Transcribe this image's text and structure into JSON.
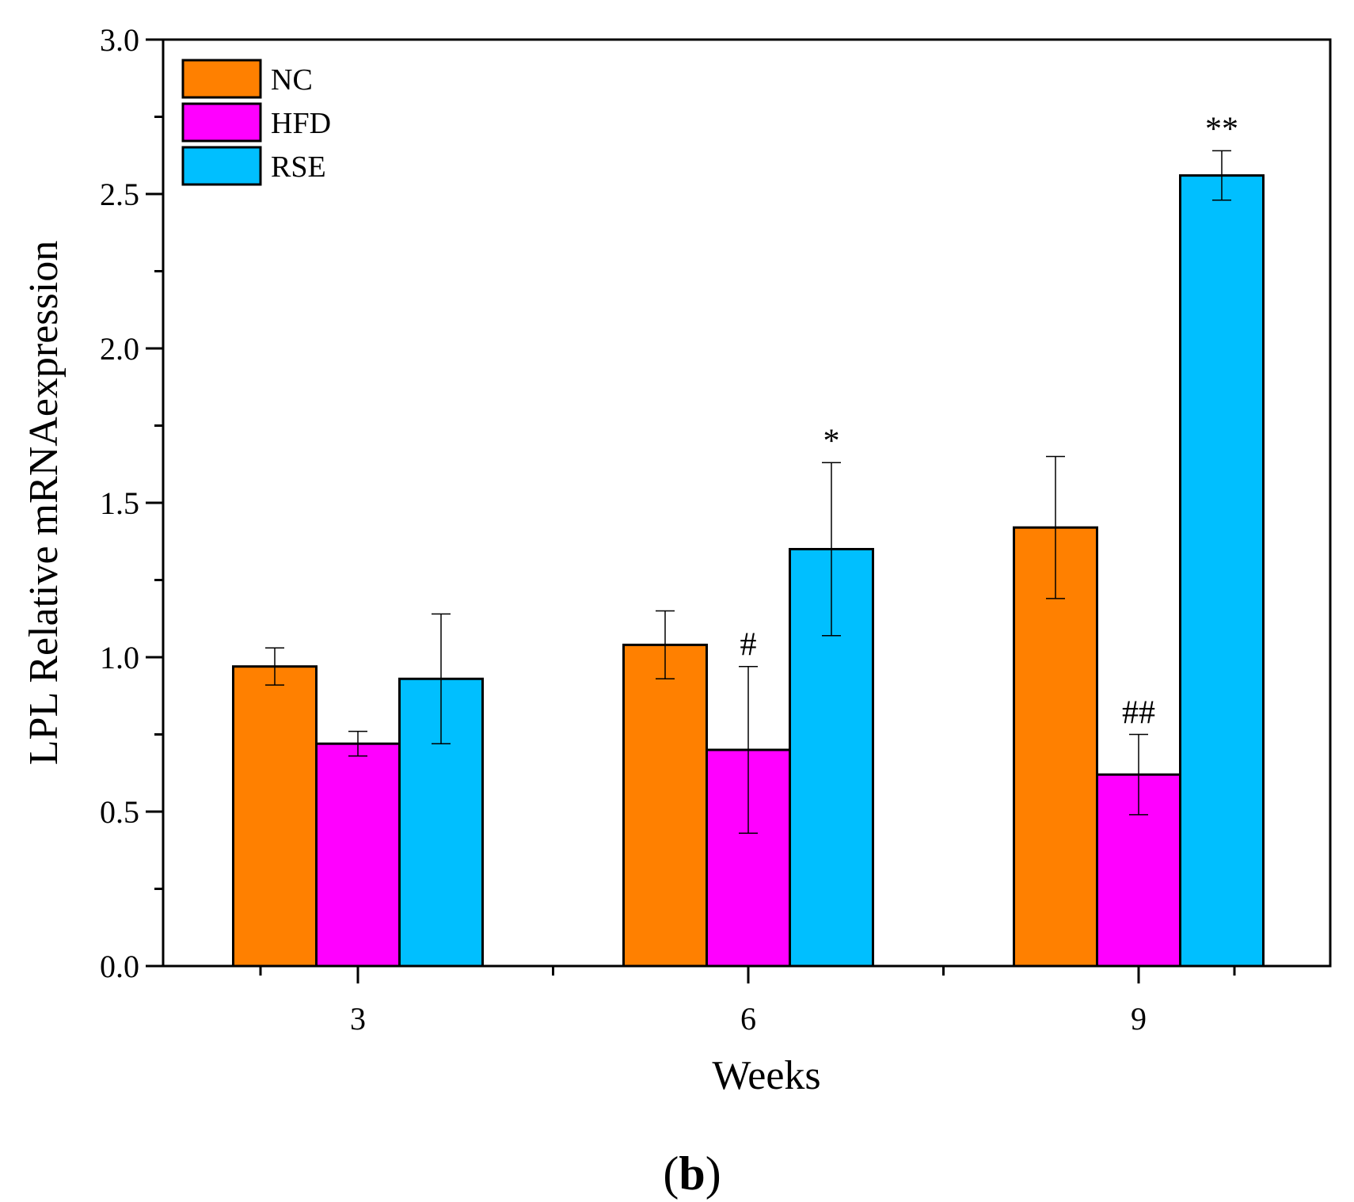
{
  "chart_data": {
    "type": "bar",
    "title": "",
    "xlabel": "Weeks",
    "ylabel": "LPL Relative mRNAexpression",
    "categories": [
      "3",
      "6",
      "9"
    ],
    "ylim": [
      0,
      3.0
    ],
    "yticks": [
      "0.0",
      "0.5",
      "1.0",
      "1.5",
      "2.0",
      "2.5",
      "3.0"
    ],
    "grid": false,
    "legend_position": "top-left",
    "series": [
      {
        "name": "NC",
        "color": "#FF8000",
        "values": [
          0.97,
          1.04,
          1.42
        ],
        "errors": [
          0.06,
          0.11,
          0.23
        ]
      },
      {
        "name": "HFD",
        "color": "#FF00FF",
        "values": [
          0.72,
          0.7,
          0.62
        ],
        "errors": [
          0.04,
          0.27,
          0.13
        ]
      },
      {
        "name": "RSE",
        "color": "#00BFFF",
        "values": [
          0.93,
          1.35,
          2.56
        ],
        "errors": [
          0.21,
          0.28,
          0.08
        ]
      }
    ],
    "annotations": [
      {
        "series": "HFD",
        "category": "6",
        "text": "#"
      },
      {
        "series": "RSE",
        "category": "6",
        "text": "*"
      },
      {
        "series": "HFD",
        "category": "9",
        "text": "##"
      },
      {
        "series": "RSE",
        "category": "9",
        "text": "**"
      }
    ]
  },
  "panel_label": {
    "open": "(",
    "letter": "b",
    "close": ")"
  }
}
